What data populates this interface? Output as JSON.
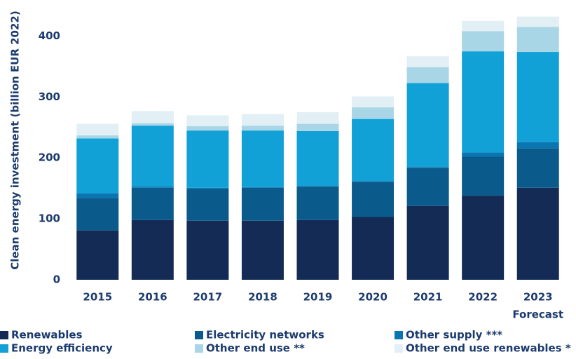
{
  "chart_data": {
    "type": "stacked_bar",
    "y_label": "Clean energy investment (billion EUR 2022)",
    "categories": [
      "2015",
      "2016",
      "2017",
      "2018",
      "2019",
      "2020",
      "2021",
      "2022",
      "2023"
    ],
    "annotation": "Forecast",
    "series": [
      {
        "name": "Renewables",
        "color": "#142b55",
        "values": [
          81,
          98,
          97,
          97,
          98,
          103,
          121,
          138,
          151
        ]
      },
      {
        "name": "Electricity networks",
        "color": "#0b5a8c",
        "values": [
          53,
          53,
          52,
          54,
          55,
          58,
          63,
          64,
          65
        ]
      },
      {
        "name": "Other supply ***",
        "color": "#0a76b1",
        "values": [
          8,
          2,
          2,
          1,
          1,
          1,
          1,
          7,
          10
        ]
      },
      {
        "name": "Energy efficiency",
        "color": "#12a1d7",
        "values": [
          90,
          100,
          94,
          93,
          90,
          102,
          138,
          166,
          148
        ]
      },
      {
        "name": "Other end use **",
        "color": "#a9d6e6",
        "values": [
          5,
          4,
          7,
          8,
          12,
          19,
          26,
          33,
          41
        ]
      },
      {
        "name": "Other end use renewables *",
        "color": "#e2f0f5",
        "values": [
          19,
          20,
          18,
          19,
          19,
          18,
          18,
          17,
          17
        ]
      }
    ],
    "ylim": [
      0,
      450
    ],
    "yticks": [
      0,
      100,
      200,
      300,
      400
    ],
    "grid": false
  }
}
